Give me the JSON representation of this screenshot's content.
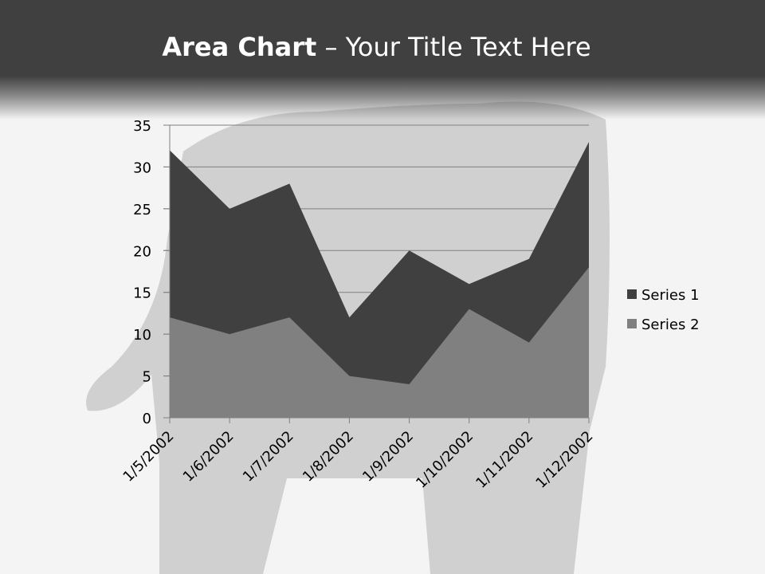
{
  "title": {
    "bold": "Area Chart",
    "rest": " – Your Title Text Here"
  },
  "chart_data": {
    "type": "area",
    "categories": [
      "1/5/2002",
      "1/6/2002",
      "1/7/2002",
      "1/8/2002",
      "1/9/2002",
      "1/10/2002",
      "1/11/2002",
      "1/12/2002"
    ],
    "series": [
      {
        "name": "Series 1",
        "values": [
          32,
          25,
          28,
          12,
          20,
          16,
          19,
          33
        ],
        "color": "#404040"
      },
      {
        "name": "Series 2",
        "values": [
          12,
          10,
          12,
          5,
          4,
          13,
          9,
          18
        ],
        "color": "#808080"
      }
    ],
    "ylim": [
      0,
      35
    ],
    "yticks": [
      0,
      5,
      10,
      15,
      20,
      25,
      30,
      35
    ],
    "grid": true,
    "legend": "right"
  }
}
